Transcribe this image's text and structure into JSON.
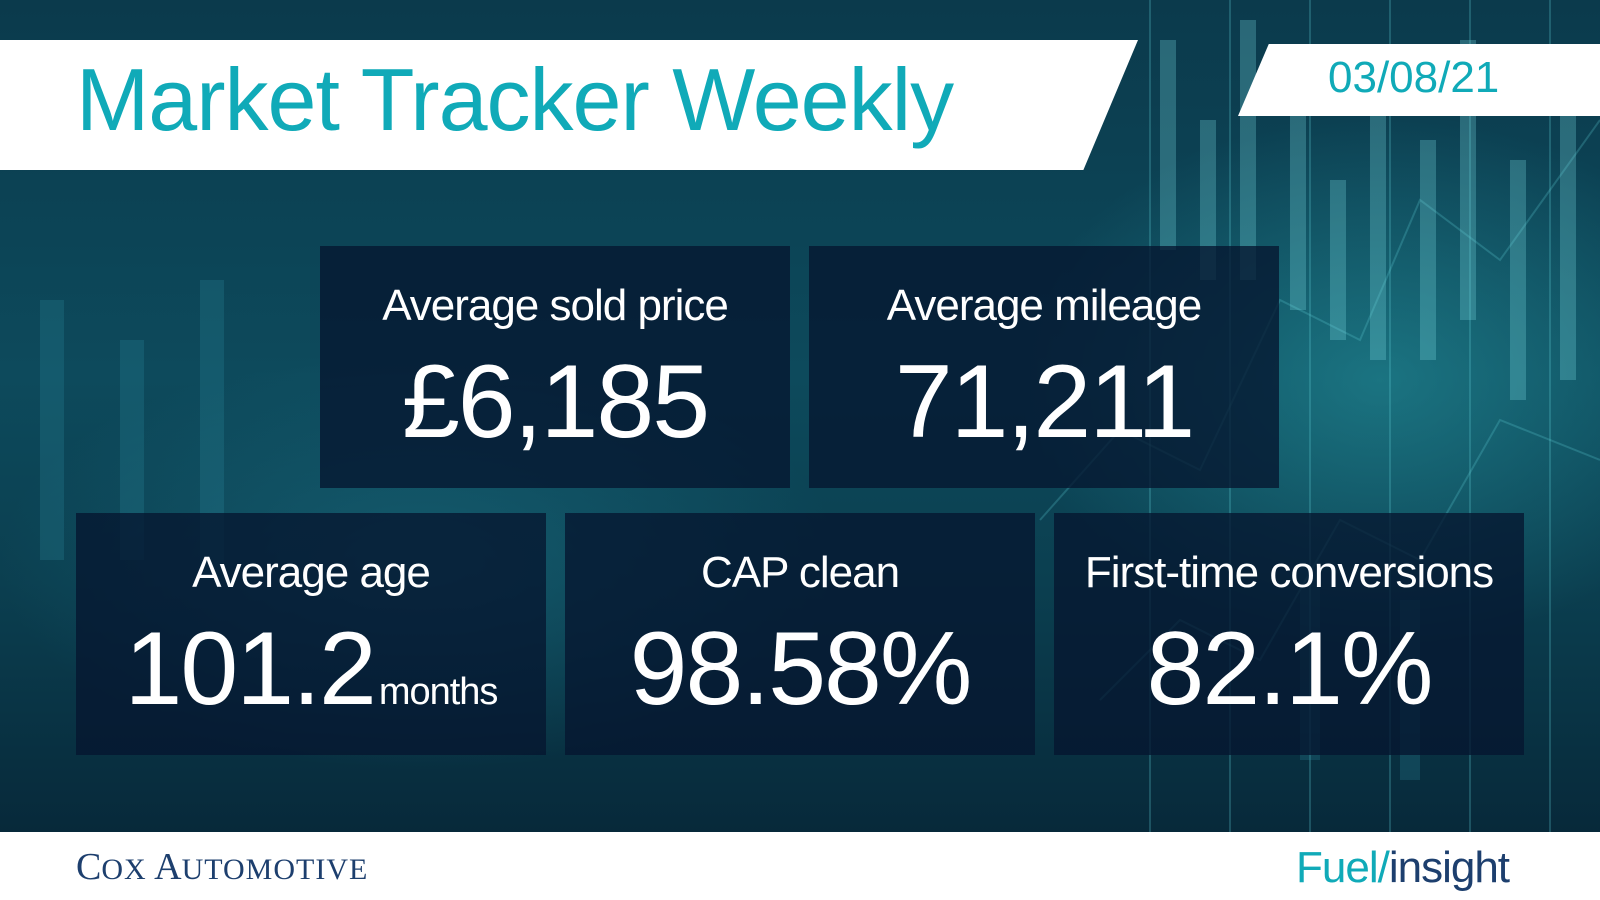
{
  "header": {
    "title": "Market Tracker Weekly",
    "date": "03/08/21"
  },
  "stats": [
    {
      "label": "Average sold price",
      "value": "£6,185",
      "unit": ""
    },
    {
      "label": "Average mileage",
      "value": "71,211",
      "unit": ""
    },
    {
      "label": "Average age",
      "value": "101.2",
      "unit": "months"
    },
    {
      "label": "CAP clean",
      "value": "98.58%",
      "unit": ""
    },
    {
      "label": "First-time conversions",
      "value": "82.1%",
      "unit": ""
    }
  ],
  "footer": {
    "brand_logo_text": "Cox Automotive",
    "brand_c": "C",
    "brand_ox": "OX",
    "brand_a": "A",
    "brand_utomotive": "UTOMOTIVE",
    "product_logo_part1": "Fuel/",
    "product_logo_part2": "insight"
  },
  "colors": {
    "accent": "#10aab8",
    "navy": "#1d3f6e",
    "tile": "#051630",
    "background": "#0d4a5c"
  }
}
